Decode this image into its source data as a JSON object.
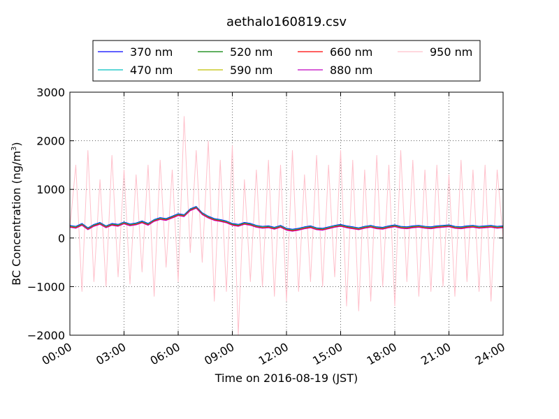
{
  "chart_data": {
    "type": "line",
    "title": "aethalo160819.csv",
    "xlabel": "Time on 2016-08-19 (JST)",
    "ylabel": "BC Concentration (ng/m",
    "ylabel_sup": "3",
    "ylabel_end": ")",
    "xlim": [
      "00:00",
      "24:00"
    ],
    "ylim": [
      -2000,
      3000
    ],
    "xticks": [
      "00:00",
      "03:00",
      "06:00",
      "09:00",
      "12:00",
      "15:00",
      "18:00",
      "21:00",
      "24:00"
    ],
    "yticks": [
      "−2000",
      "−1000",
      "0",
      "1000",
      "2000",
      "3000"
    ],
    "ytick_values": [
      -2000,
      -1000,
      0,
      1000,
      2000,
      3000
    ],
    "grid": true,
    "legend_position": "top-center",
    "x_hours": [
      0,
      0.33,
      0.67,
      1,
      1.33,
      1.67,
      2,
      2.33,
      2.67,
      3,
      3.33,
      3.67,
      4,
      4.33,
      4.67,
      5,
      5.33,
      5.67,
      6,
      6.33,
      6.67,
      7,
      7.33,
      7.67,
      8,
      8.33,
      8.67,
      9,
      9.33,
      9.67,
      10,
      10.33,
      10.67,
      11,
      11.33,
      11.67,
      12,
      12.33,
      12.67,
      13,
      13.33,
      13.67,
      14,
      14.33,
      14.67,
      15,
      15.33,
      15.67,
      16,
      16.33,
      16.67,
      17,
      17.33,
      17.67,
      18,
      18.33,
      18.67,
      19,
      19.33,
      19.67,
      20,
      20.33,
      20.67,
      21,
      21.33,
      21.67,
      22,
      22.33,
      22.67,
      23,
      23.33,
      23.67,
      24
    ],
    "series": [
      {
        "name": "370 nm",
        "color": "#0000ff",
        "values": [
          260,
          240,
          300,
          210,
          280,
          320,
          250,
          300,
          280,
          330,
          290,
          310,
          350,
          300,
          380,
          420,
          400,
          450,
          500,
          480,
          600,
          650,
          520,
          450,
          400,
          380,
          350,
          300,
          280,
          320,
          300,
          260,
          240,
          250,
          220,
          260,
          200,
          180,
          200,
          230,
          250,
          210,
          200,
          230,
          260,
          280,
          250,
          230,
          210,
          240,
          260,
          230,
          220,
          250,
          270,
          240,
          230,
          250,
          260,
          240,
          230,
          250,
          260,
          270,
          240,
          230,
          250,
          260,
          240,
          250,
          260,
          240,
          250
        ]
      },
      {
        "name": "470 nm",
        "color": "#00bfbf",
        "values": [
          250,
          230,
          290,
          200,
          270,
          310,
          240,
          290,
          270,
          320,
          280,
          300,
          340,
          290,
          370,
          410,
          390,
          440,
          490,
          470,
          590,
          640,
          510,
          440,
          390,
          370,
          340,
          290,
          270,
          310,
          290,
          250,
          230,
          240,
          210,
          250,
          190,
          170,
          190,
          220,
          240,
          200,
          190,
          220,
          250,
          270,
          240,
          220,
          200,
          230,
          250,
          220,
          210,
          240,
          260,
          230,
          220,
          240,
          250,
          230,
          220,
          240,
          250,
          260,
          230,
          220,
          240,
          250,
          230,
          240,
          250,
          230,
          240
        ]
      },
      {
        "name": "520 nm",
        "color": "#008000",
        "values": [
          240,
          220,
          280,
          190,
          260,
          300,
          230,
          280,
          260,
          310,
          270,
          290,
          330,
          280,
          360,
          400,
          380,
          430,
          480,
          460,
          580,
          630,
          500,
          430,
          380,
          360,
          330,
          280,
          260,
          300,
          280,
          240,
          220,
          230,
          200,
          240,
          180,
          160,
          180,
          210,
          230,
          190,
          180,
          210,
          240,
          260,
          230,
          210,
          190,
          220,
          240,
          210,
          200,
          230,
          250,
          220,
          210,
          230,
          240,
          220,
          210,
          230,
          240,
          250,
          220,
          210,
          230,
          240,
          220,
          230,
          240,
          220,
          230
        ]
      },
      {
        "name": "590 nm",
        "color": "#bfbf00",
        "values": [
          235,
          215,
          275,
          185,
          255,
          295,
          225,
          275,
          255,
          305,
          265,
          285,
          325,
          275,
          355,
          395,
          375,
          425,
          475,
          455,
          575,
          625,
          495,
          425,
          375,
          355,
          325,
          275,
          255,
          295,
          275,
          235,
          215,
          225,
          195,
          235,
          175,
          155,
          175,
          205,
          225,
          185,
          175,
          205,
          235,
          255,
          225,
          205,
          185,
          215,
          235,
          205,
          195,
          225,
          245,
          215,
          205,
          225,
          235,
          215,
          205,
          225,
          235,
          245,
          215,
          205,
          225,
          235,
          215,
          225,
          235,
          215,
          225
        ]
      },
      {
        "name": "660 nm",
        "color": "#ff0000",
        "values": [
          230,
          210,
          270,
          180,
          250,
          290,
          220,
          270,
          250,
          300,
          260,
          280,
          320,
          270,
          350,
          390,
          370,
          420,
          470,
          450,
          570,
          620,
          490,
          420,
          370,
          350,
          320,
          270,
          250,
          290,
          270,
          230,
          210,
          220,
          190,
          230,
          170,
          150,
          170,
          200,
          220,
          180,
          170,
          200,
          230,
          250,
          220,
          200,
          180,
          210,
          230,
          200,
          190,
          220,
          240,
          210,
          200,
          220,
          230,
          210,
          200,
          220,
          230,
          240,
          210,
          200,
          220,
          230,
          210,
          220,
          230,
          210,
          220
        ]
      },
      {
        "name": "880 nm",
        "color": "#bf00bf",
        "values": [
          220,
          200,
          260,
          170,
          240,
          280,
          210,
          260,
          240,
          290,
          250,
          270,
          310,
          260,
          340,
          380,
          360,
          410,
          460,
          440,
          560,
          610,
          480,
          410,
          360,
          340,
          310,
          260,
          240,
          280,
          260,
          220,
          200,
          210,
          180,
          220,
          160,
          140,
          160,
          190,
          210,
          170,
          160,
          190,
          220,
          240,
          210,
          190,
          170,
          200,
          220,
          190,
          180,
          210,
          230,
          200,
          190,
          210,
          220,
          200,
          190,
          210,
          220,
          230,
          200,
          190,
          210,
          220,
          200,
          210,
          220,
          200,
          210
        ]
      },
      {
        "name": "950 nm",
        "color": "#ffc0cb",
        "values": [
          200,
          1500,
          -1100,
          1800,
          -900,
          1200,
          -1000,
          1700,
          -800,
          1400,
          -950,
          1300,
          -700,
          1500,
          -1200,
          1600,
          -600,
          1400,
          -900,
          2500,
          -300,
          1800,
          -500,
          2000,
          -1300,
          1600,
          -1100,
          1900,
          -2000,
          1200,
          -900,
          1400,
          -1000,
          1600,
          -1200,
          1500,
          -1300,
          1800,
          -1100,
          1300,
          -900,
          1700,
          -1000,
          1500,
          -800,
          1800,
          -1400,
          1600,
          -1500,
          1400,
          -1300,
          1700,
          -1000,
          1500,
          -1400,
          1800,
          -900,
          1600,
          -1200,
          1400,
          -1100,
          1500,
          -1000,
          1300,
          -1200,
          1600,
          -900,
          1400,
          -1100,
          1500,
          -1300,
          1400,
          0
        ]
      }
    ]
  }
}
